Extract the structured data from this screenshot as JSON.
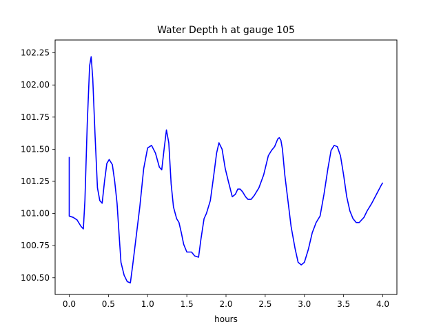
{
  "chart_data": {
    "type": "line",
    "title": "Water Depth h at gauge 105",
    "xlabel": "hours",
    "ylabel": "",
    "xlim": [
      -0.18,
      4.18
    ],
    "ylim": [
      100.37,
      102.35
    ],
    "grid": false,
    "legend": "none",
    "xticks": [
      0.0,
      0.5,
      1.0,
      1.5,
      2.0,
      2.5,
      3.0,
      3.5,
      4.0
    ],
    "xtick_labels": [
      "0.0",
      "0.5",
      "1.0",
      "1.5",
      "2.0",
      "2.5",
      "3.0",
      "3.5",
      "4.0"
    ],
    "yticks": [
      100.5,
      100.75,
      101.0,
      101.25,
      101.5,
      101.75,
      102.0,
      102.25
    ],
    "ytick_labels": [
      "100.50",
      "100.75",
      "101.00",
      "101.25",
      "101.50",
      "101.75",
      "102.00",
      "102.25"
    ],
    "series": [
      {
        "color": "#0000ff",
        "x": [
          0.0,
          0.0,
          0.05,
          0.1,
          0.15,
          0.18,
          0.2,
          0.23,
          0.26,
          0.28,
          0.3,
          0.33,
          0.36,
          0.39,
          0.42,
          0.45,
          0.48,
          0.51,
          0.55,
          0.58,
          0.61,
          0.64,
          0.66,
          0.7,
          0.74,
          0.78,
          0.81,
          0.85,
          0.9,
          0.95,
          1.0,
          1.05,
          1.1,
          1.15,
          1.18,
          1.21,
          1.24,
          1.27,
          1.3,
          1.33,
          1.37,
          1.4,
          1.43,
          1.46,
          1.5,
          1.53,
          1.56,
          1.6,
          1.65,
          1.68,
          1.72,
          1.75,
          1.8,
          1.84,
          1.88,
          1.91,
          1.95,
          1.99,
          2.03,
          2.08,
          2.12,
          2.15,
          2.18,
          2.21,
          2.25,
          2.28,
          2.32,
          2.36,
          2.42,
          2.48,
          2.54,
          2.58,
          2.62,
          2.66,
          2.68,
          2.7,
          2.72,
          2.75,
          2.79,
          2.83,
          2.88,
          2.92,
          2.96,
          3.0,
          3.05,
          3.1,
          3.15,
          3.2,
          3.25,
          3.3,
          3.34,
          3.38,
          3.42,
          3.46,
          3.5,
          3.54,
          3.58,
          3.62,
          3.66,
          3.7,
          3.76,
          3.8,
          3.86,
          3.92,
          3.98,
          4.0
        ],
        "y": [
          101.44,
          100.98,
          100.97,
          100.95,
          100.9,
          100.88,
          101.1,
          101.7,
          102.15,
          102.22,
          102.05,
          101.6,
          101.2,
          101.1,
          101.08,
          101.25,
          101.39,
          101.42,
          101.38,
          101.25,
          101.08,
          100.8,
          100.62,
          100.52,
          100.47,
          100.46,
          100.6,
          100.8,
          101.05,
          101.35,
          101.51,
          101.53,
          101.47,
          101.36,
          101.34,
          101.5,
          101.65,
          101.55,
          101.23,
          101.05,
          100.96,
          100.93,
          100.85,
          100.76,
          100.7,
          100.7,
          100.7,
          100.67,
          100.66,
          100.8,
          100.96,
          101.0,
          101.1,
          101.28,
          101.47,
          101.55,
          101.5,
          101.35,
          101.25,
          101.13,
          101.15,
          101.19,
          101.19,
          101.17,
          101.13,
          101.11,
          101.11,
          101.14,
          101.2,
          101.3,
          101.45,
          101.49,
          101.52,
          101.58,
          101.59,
          101.57,
          101.5,
          101.3,
          101.1,
          100.9,
          100.73,
          100.62,
          100.6,
          100.62,
          100.72,
          100.85,
          100.93,
          100.98,
          101.15,
          101.35,
          101.49,
          101.53,
          101.52,
          101.45,
          101.3,
          101.13,
          101.02,
          100.96,
          100.93,
          100.93,
          100.97,
          101.02,
          101.08,
          101.15,
          101.22,
          101.24
        ]
      }
    ]
  }
}
